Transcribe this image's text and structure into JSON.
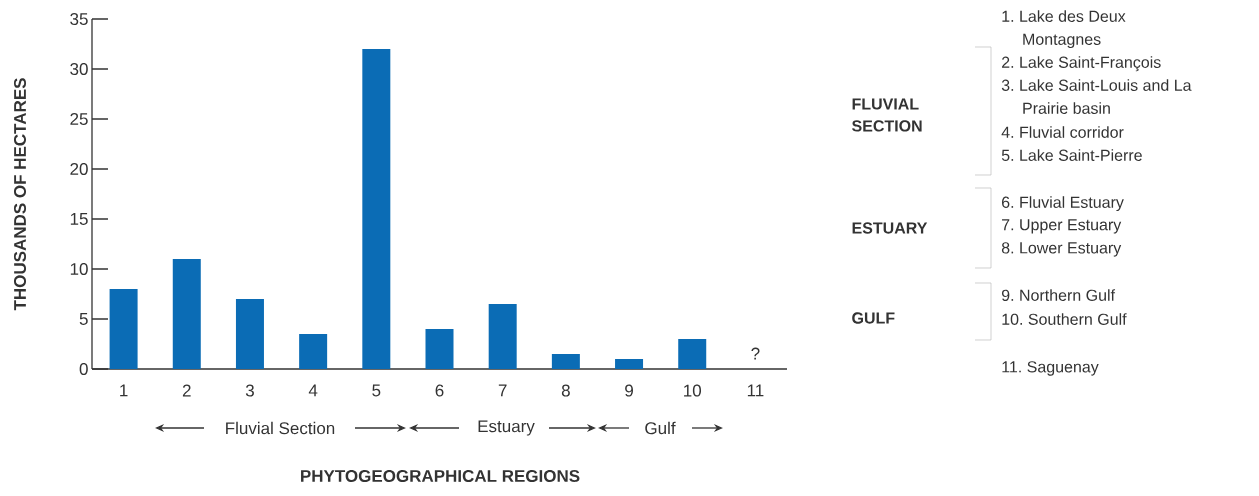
{
  "chart_data": {
    "type": "bar",
    "xlabel": "PHYTOGEOGRAPHICAL REGIONS",
    "ylabel": "THOUSANDS OF HECTARES",
    "categories": [
      "1",
      "2",
      "3",
      "4",
      "5",
      "6",
      "7",
      "8",
      "9",
      "10",
      "11"
    ],
    "values": [
      8,
      11,
      7,
      3.5,
      32,
      4,
      6.5,
      1.5,
      1,
      3,
      null
    ],
    "color": "#0b6cb5",
    "ylim": [
      0,
      35
    ],
    "yticks": [
      0,
      5,
      10,
      15,
      20,
      25,
      30,
      35
    ],
    "annotations": [
      "?",
      "Fluvial Section",
      "Estuary",
      "Gulf",
      "FLUVIAL SECTION",
      "ESTUARY",
      "GULF",
      "1. Lake des Deux Montagnes",
      "2. Lake Saint-François",
      "3. Lake Saint-Louis and La Prairie basin",
      "4. Fluvial corridor",
      "5. Lake Saint-Pierre",
      "6. Fluvial Estuary",
      "7. Upper Estuary",
      "8. Lower Estuary",
      "9. Northern Gulf",
      "10. Southern Gulf",
      "11. Saguenay"
    ]
  }
}
